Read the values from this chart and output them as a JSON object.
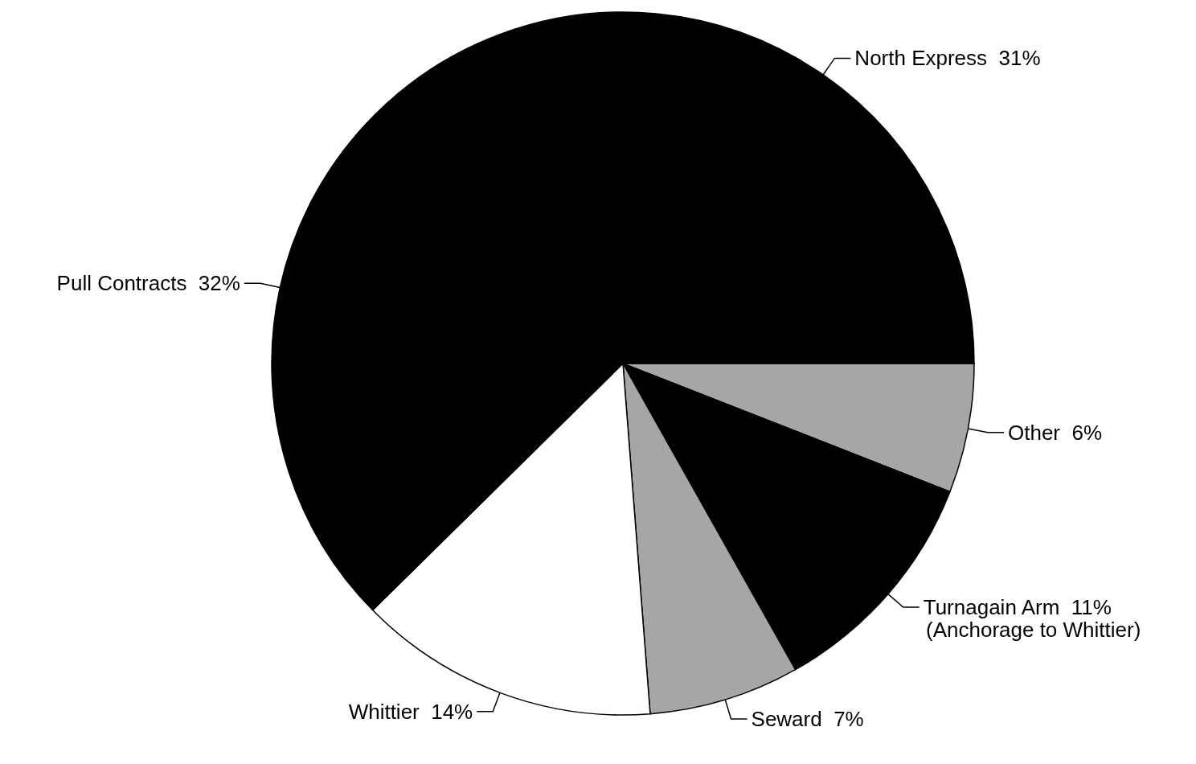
{
  "chart_data": {
    "type": "pie",
    "categories": [
      "Other",
      "Turnagain Arm",
      "Seward",
      "Whittier",
      "Pull Contracts",
      "North Express"
    ],
    "values": [
      6,
      11,
      7,
      14,
      32,
      31
    ],
    "value_labels": [
      "6%",
      "11%",
      "7%",
      "14%",
      "32%",
      "31%"
    ],
    "colors": [
      "#a6a6a6",
      "#000000",
      "#a6a6a6",
      "#ffffff",
      "#000000",
      "#000000"
    ],
    "annotations": [
      "(Anchorage to Whittier)"
    ],
    "legend": false
  }
}
